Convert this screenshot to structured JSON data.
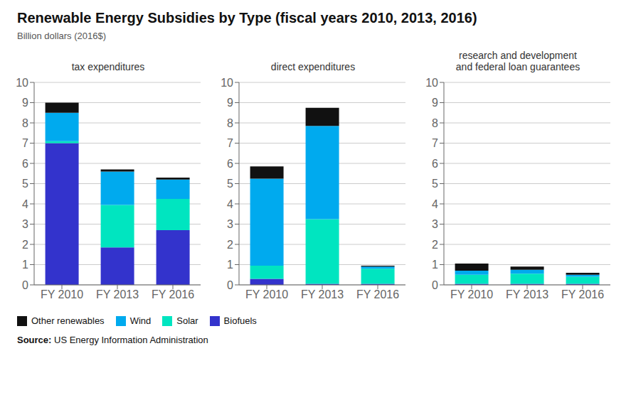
{
  "title": "Renewable Energy Subsidies by Type (fiscal years 2010, 2013, 2016)",
  "subtitle": "Billion dollars (2016$)",
  "annotations": [
    "Source: US Energy Information Administration"
  ],
  "legend": "lower left",
  "chart_data": [
    {
      "type": "bar",
      "stacked": true,
      "title": "tax expenditures",
      "categories": [
        "FY 2010",
        "FY 2013",
        "FY 2016"
      ],
      "series": [
        {
          "name": "Biofuels",
          "color": "#3333cc",
          "values": [
            7.0,
            1.85,
            2.7
          ]
        },
        {
          "name": "Solar",
          "color": "#00e5c0",
          "values": [
            0.1,
            2.1,
            1.55
          ]
        },
        {
          "name": "Wind",
          "color": "#00aaee",
          "values": [
            1.4,
            1.65,
            0.95
          ]
        },
        {
          "name": "Other renewables",
          "color": "#111111",
          "values": [
            0.5,
            0.1,
            0.1
          ]
        }
      ],
      "ylim": [
        0,
        10
      ],
      "yticks": [
        0,
        1,
        2,
        3,
        4,
        5,
        6,
        7,
        8,
        9,
        10
      ],
      "grid": true
    },
    {
      "type": "bar",
      "stacked": true,
      "title": "direct expenditures",
      "categories": [
        "FY 2010",
        "FY 2013",
        "FY 2016"
      ],
      "series": [
        {
          "name": "Biofuels",
          "color": "#3333cc",
          "values": [
            0.3,
            0.05,
            0.05
          ]
        },
        {
          "name": "Solar",
          "color": "#00e5c0",
          "values": [
            0.65,
            3.2,
            0.75
          ]
        },
        {
          "name": "Wind",
          "color": "#00aaee",
          "values": [
            4.3,
            4.6,
            0.1
          ]
        },
        {
          "name": "Other renewables",
          "color": "#111111",
          "values": [
            0.6,
            0.9,
            0.05
          ]
        }
      ],
      "ylim": [
        0,
        10
      ],
      "yticks": [
        0,
        1,
        2,
        3,
        4,
        5,
        6,
        7,
        8,
        9,
        10
      ],
      "grid": true
    },
    {
      "type": "bar",
      "stacked": true,
      "title": "research and development\nand federal loan guarantees",
      "categories": [
        "FY 2010",
        "FY 2013",
        "FY 2016"
      ],
      "series": [
        {
          "name": "Biofuels",
          "color": "#3333cc",
          "values": [
            0.05,
            0.05,
            0.05
          ]
        },
        {
          "name": "Solar",
          "color": "#00e5c0",
          "values": [
            0.45,
            0.5,
            0.35
          ]
        },
        {
          "name": "Wind",
          "color": "#00aaee",
          "values": [
            0.2,
            0.2,
            0.1
          ]
        },
        {
          "name": "Other renewables",
          "color": "#111111",
          "values": [
            0.35,
            0.15,
            0.1
          ]
        }
      ],
      "ylim": [
        0,
        10
      ],
      "yticks": [
        0,
        1,
        2,
        3,
        4,
        5,
        6,
        7,
        8,
        9,
        10
      ],
      "grid": true
    }
  ]
}
